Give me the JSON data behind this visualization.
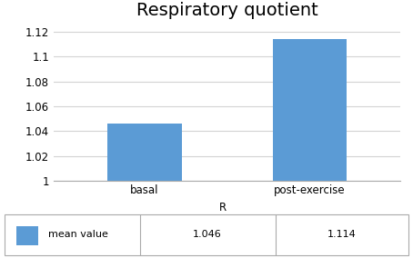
{
  "title": "Respiratory quotient",
  "categories": [
    "basal",
    "post-exercise"
  ],
  "values": [
    1.046,
    1.114
  ],
  "xlabel": "R",
  "bar_color": "#5B9BD5",
  "ylim_min": 1.0,
  "ylim_max": 1.125,
  "yticks": [
    1.0,
    1.02,
    1.04,
    1.06,
    1.08,
    1.1,
    1.12
  ],
  "ytick_labels": [
    "1",
    "1.02",
    "1.04",
    "1.06",
    "1.08",
    "1.1",
    "1.12"
  ],
  "legend_label": "mean value",
  "legend_values": [
    "1.046",
    "1.114"
  ],
  "title_fontsize": 14,
  "tick_fontsize": 8.5,
  "background_color": "#FFFFFF",
  "grid_color": "#D3D3D3",
  "border_color": "#AAAAAA"
}
